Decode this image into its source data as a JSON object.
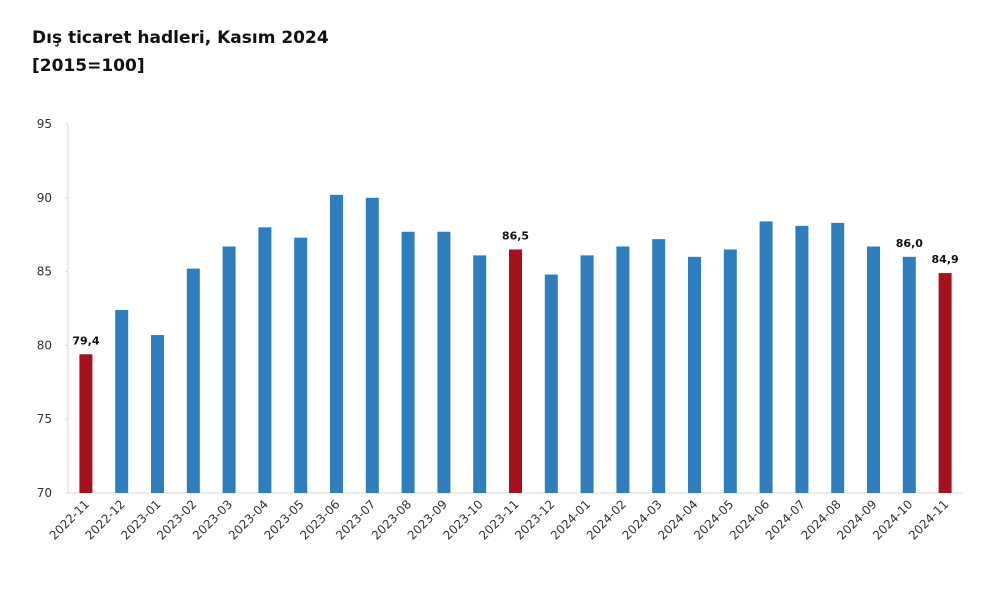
{
  "chart_data": {
    "type": "bar",
    "title": "Dış ticaret hadleri, Kasım 2024",
    "subtitle": "[2015=100]",
    "categories": [
      "2022-11",
      "2022-12",
      "2023-01",
      "2023-02",
      "2023-03",
      "2023-04",
      "2023-05",
      "2023-06",
      "2023-07",
      "2023-08",
      "2023-09",
      "2023-10",
      "2023-11",
      "2023-12",
      "2024-01",
      "2024-02",
      "2024-03",
      "2024-04",
      "2024-05",
      "2024-06",
      "2024-07",
      "2024-08",
      "2024-09",
      "2024-10",
      "2024-11"
    ],
    "values": [
      79.4,
      82.4,
      80.7,
      85.2,
      86.7,
      88.0,
      87.3,
      90.2,
      90.0,
      87.7,
      87.7,
      86.1,
      86.5,
      84.8,
      86.1,
      86.7,
      87.2,
      86.0,
      86.5,
      88.4,
      88.1,
      88.3,
      86.7,
      86.0,
      84.9
    ],
    "value_labels": [
      "79,4",
      null,
      null,
      null,
      null,
      null,
      null,
      null,
      null,
      null,
      null,
      null,
      "86,5",
      null,
      null,
      null,
      null,
      null,
      null,
      null,
      null,
      null,
      null,
      "86,0",
      "84,9"
    ],
    "colors": [
      "#a5121e",
      "#2e7ebd",
      "#2e7ebd",
      "#2e7ebd",
      "#2e7ebd",
      "#2e7ebd",
      "#2e7ebd",
      "#2e7ebd",
      "#2e7ebd",
      "#2e7ebd",
      "#2e7ebd",
      "#2e7ebd",
      "#a5121e",
      "#2e7ebd",
      "#2e7ebd",
      "#2e7ebd",
      "#2e7ebd",
      "#2e7ebd",
      "#2e7ebd",
      "#2e7ebd",
      "#2e7ebd",
      "#2e7ebd",
      "#2e7ebd",
      "#2e7ebd",
      "#a5121e"
    ],
    "ylim": [
      70,
      95
    ],
    "yticks": [
      70,
      75,
      80,
      85,
      90,
      95
    ],
    "grid": false
  }
}
